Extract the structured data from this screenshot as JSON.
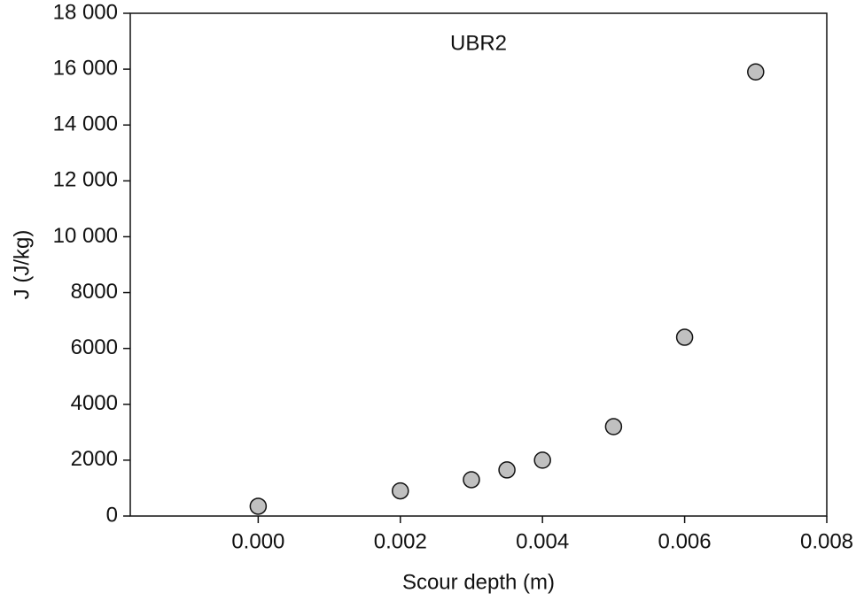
{
  "chart_data": {
    "type": "scatter",
    "annotation": "UBR2",
    "xlabel": "Scour depth (m)",
    "ylabel": "J (J/kg)",
    "x": [
      0.0,
      0.002,
      0.003,
      0.0035,
      0.004,
      0.005,
      0.006,
      0.007
    ],
    "series": [
      {
        "name": "UBR2",
        "color": "#c0c0c0",
        "values": [
          350,
          900,
          1300,
          1650,
          2000,
          3200,
          6400,
          15900
        ]
      }
    ],
    "xlim": [
      -0.0018,
      0.008
    ],
    "xticks": [
      {
        "value": 0,
        "label": "0.000"
      },
      {
        "value": 0.002,
        "label": "0.002"
      },
      {
        "value": 0.004,
        "label": "0.004"
      },
      {
        "value": 0.006,
        "label": "0.006"
      },
      {
        "value": 0.008,
        "label": "0.008"
      }
    ],
    "ylim": [
      0,
      18000
    ],
    "yticks": [
      0,
      2000,
      4000,
      6000,
      8000,
      {
        "value": 10000,
        "label": "10 000"
      },
      {
        "value": 12000,
        "label": "12 000"
      },
      {
        "value": 14000,
        "label": "14 000"
      },
      {
        "value": 16000,
        "label": "16 000"
      },
      {
        "value": 18000,
        "label": "18 000"
      }
    ],
    "grid": false
  }
}
